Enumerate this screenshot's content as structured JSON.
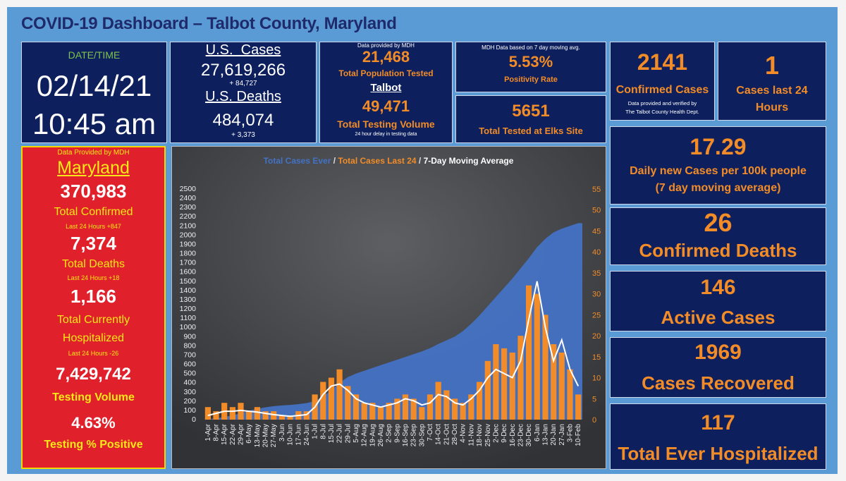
{
  "title": "COVID-19 Dashboard – Talbot County, Maryland",
  "datetime": {
    "label": "DATE/TIME",
    "date": "02/14/21",
    "time": "10:45 am"
  },
  "us": {
    "cases_label": "U.S.  Cases",
    "cases": "27,619,266",
    "cases_delta": "+ 84,727",
    "deaths_label": "U.S. Deaths",
    "deaths": "484,074",
    "deaths_delta": "+ 3,373"
  },
  "testing": {
    "provided": "Data provided by MDH",
    "population_tested": "21,468",
    "population_tested_label": "Total Population Tested",
    "talbot": "Talbot",
    "volume": "49,471",
    "volume_label": "Total Testing Volume",
    "delay_note": "24 hour delay in testing data"
  },
  "positivity": {
    "note": "MDH Data based on  7 day moving avg.",
    "value": "5.53%",
    "label": "Positivity Rate"
  },
  "elks": {
    "value": "5651",
    "label": "Total Tested at Elks Site"
  },
  "confirmed": {
    "value": "2141",
    "label": "Confirmed Cases",
    "note1": "Data provided and verified by",
    "note2": "The Talbot County Health Dept."
  },
  "last24": {
    "value": "1",
    "label1": "Cases last 24",
    "label2": "Hours"
  },
  "per100k": {
    "value": "17.29",
    "label1": "Daily new Cases per 100k people",
    "label2": "(7 day moving average)"
  },
  "deaths": {
    "value": "26",
    "label": "Confirmed Deaths"
  },
  "active": {
    "value": "146",
    "label": "Active Cases"
  },
  "recovered": {
    "value": "1969",
    "label": "Cases Recovered"
  },
  "hospitalized": {
    "value": "117",
    "label": "Total Ever Hospitalized"
  },
  "maryland": {
    "provided": "Data Provided by MDH",
    "name": "Maryland",
    "confirmed": "370,983",
    "confirmed_label": "Total Confirmed",
    "confirmed_delta": "Last 24 Hours +847",
    "deaths": "7,374",
    "deaths_label": "Total Deaths",
    "deaths_delta": "Last 24 Hours +18",
    "hosp": "1,166",
    "hosp_label1": "Total Currently",
    "hosp_label2": "Hospitalized",
    "hosp_delta": "Last 24 Hours -26",
    "testing": "7,429,742",
    "testing_label": "Testing Volume",
    "positive": "4.63%",
    "positive_label": "Testing % Positive"
  },
  "colors": {
    "cumulative": "#4472c4",
    "daily": "#f28c28",
    "average": "#ffffff",
    "panel": "#0d1f5c",
    "accent": "#f28c28"
  },
  "chart_data": {
    "type": "bar",
    "title_parts": [
      "Total Cases Ever",
      " / ",
      "Total Cases Last 24",
      " / ",
      "7-Day Moving Average"
    ],
    "left_axis": {
      "ylim": [
        0,
        2500
      ],
      "step": 100
    },
    "right_axis": {
      "ylim": [
        0,
        55
      ],
      "step": 5
    },
    "x_labels": [
      "1-Apr",
      "8-Apr",
      "15-Apr",
      "22-Apr",
      "29-Apr",
      "6-May",
      "13-May",
      "20-May",
      "27-May",
      "3-Jun",
      "10-Jun",
      "17-Jun",
      "24-Jun",
      "1-Jul",
      "8-Jul",
      "15-Jul",
      "22-Jul",
      "29-Jul",
      "5-Aug",
      "12-Aug",
      "19-Aug",
      "26-Aug",
      "2-Sep",
      "9-Sep",
      "16-Sep",
      "23-Sep",
      "30-Sep",
      "7-Oct",
      "14-Oct",
      "21-Oct",
      "28-Oct",
      "4-Nov",
      "11-Nov",
      "18-Nov",
      "25-Nov",
      "2-Dec",
      "9-Dec",
      "16-Dec",
      "23-Dec",
      "30-Dec",
      "6-Jan",
      "13-Jan",
      "20-Jan",
      "27-Jan",
      "3-Feb",
      "10-Feb"
    ],
    "series": [
      {
        "name": "Total Cases Ever",
        "axis": "left",
        "type": "area",
        "values": [
          5,
          14,
          28,
          46,
          70,
          96,
          118,
          134,
          146,
          154,
          160,
          168,
          180,
          200,
          250,
          320,
          400,
          460,
          500,
          530,
          560,
          590,
          620,
          650,
          680,
          710,
          740,
          775,
          820,
          860,
          900,
          960,
          1040,
          1130,
          1230,
          1330,
          1430,
          1530,
          1640,
          1750,
          1870,
          1960,
          2030,
          2070,
          2100,
          2130
        ]
      },
      {
        "name": "Total Cases Last 24",
        "axis": "right",
        "type": "bar",
        "values": [
          3,
          2,
          4,
          3,
          4,
          2,
          3,
          2,
          2,
          1,
          1,
          2,
          2,
          6,
          9,
          10,
          12,
          8,
          6,
          4,
          4,
          3,
          4,
          5,
          6,
          5,
          3,
          6,
          9,
          7,
          5,
          4,
          6,
          9,
          14,
          18,
          17,
          16,
          20,
          32,
          30,
          25,
          18,
          16,
          12,
          6
        ]
      },
      {
        "name": "7-Day Moving Average",
        "axis": "right",
        "type": "line",
        "values": [
          1,
          1.5,
          2,
          2,
          2.2,
          2,
          1.8,
          1.5,
          1.2,
          1,
          0.8,
          1,
          1.2,
          3,
          6,
          8,
          8.5,
          7,
          5,
          4,
          3.5,
          3,
          3.5,
          4,
          5,
          4.5,
          3.5,
          4,
          6,
          5.5,
          4,
          3.5,
          5,
          7,
          10,
          12,
          11,
          10,
          14,
          24,
          33,
          22,
          14,
          19,
          12,
          8
        ]
      }
    ]
  }
}
